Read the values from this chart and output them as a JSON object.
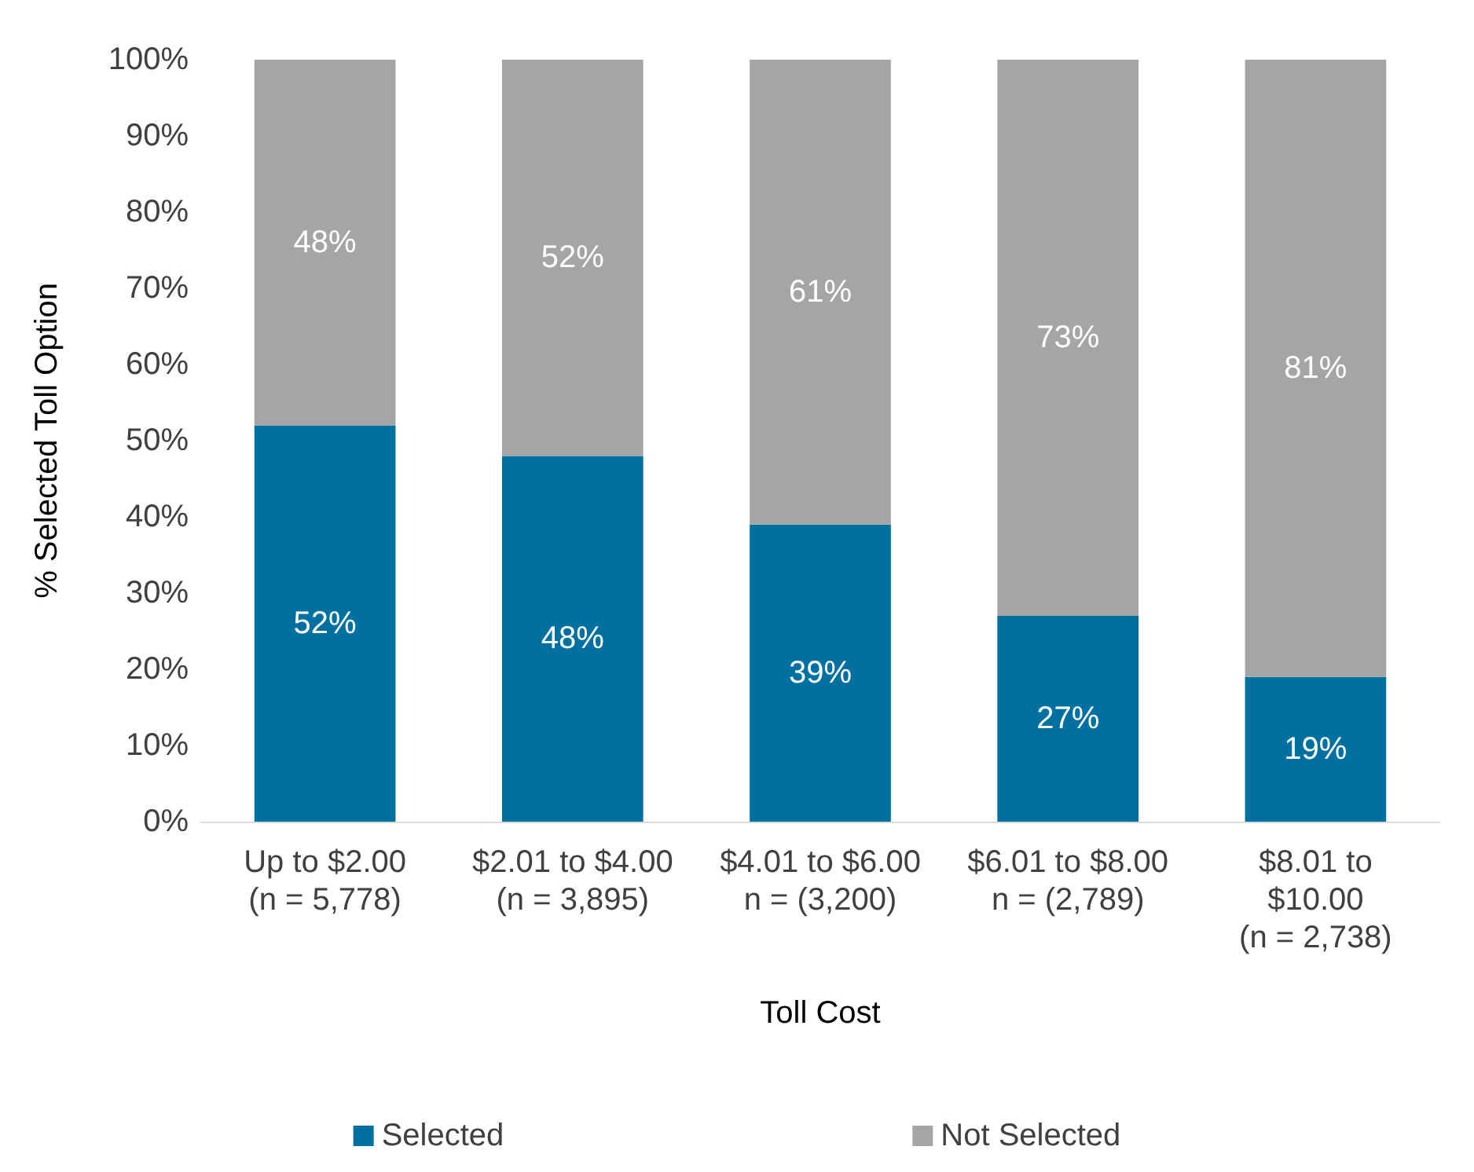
{
  "chart_data": {
    "type": "bar",
    "stacked": true,
    "xlabel": "Toll Cost",
    "ylabel": "% Selected Toll Option",
    "categories": [
      "Up to $2.00\n(n = 5,778)",
      "$2.01 to $4.00\n(n = 3,895)",
      "$4.01 to $6.00\nn = (3,200)",
      "$6.01 to $8.00\nn = (2,789)",
      "$8.01 to\n$10.00\n(n = 2,738)"
    ],
    "series": [
      {
        "name": "Selected",
        "color": "#0070a0",
        "values": [
          52,
          48,
          39,
          27,
          19
        ],
        "value_labels": [
          "52%",
          "48%",
          "39%",
          "27%",
          "19%"
        ]
      },
      {
        "name": "Not Selected",
        "color": "#a5a5a5",
        "values": [
          48,
          52,
          61,
          73,
          81
        ],
        "value_labels": [
          "48%",
          "52%",
          "61%",
          "73%",
          "81%"
        ]
      }
    ],
    "ylim": [
      0,
      100
    ],
    "yticks": [
      {
        "value": 0,
        "label": "0%"
      },
      {
        "value": 10,
        "label": "10%"
      },
      {
        "value": 20,
        "label": "20%"
      },
      {
        "value": 30,
        "label": "30%"
      },
      {
        "value": 40,
        "label": "40%"
      },
      {
        "value": 50,
        "label": "50%"
      },
      {
        "value": 60,
        "label": "60%"
      },
      {
        "value": 70,
        "label": "70%"
      },
      {
        "value": 80,
        "label": "80%"
      },
      {
        "value": 90,
        "label": "90%"
      },
      {
        "value": 100,
        "label": "100%"
      }
    ],
    "grid": false,
    "legend": "bottom"
  }
}
